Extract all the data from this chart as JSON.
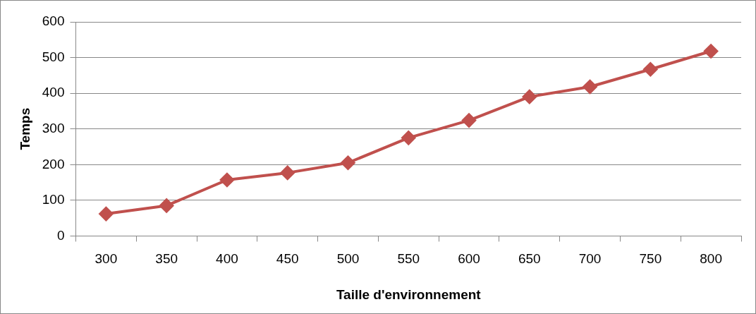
{
  "chart_data": {
    "type": "line",
    "xlabel": "Taille d'environnement",
    "ylabel": "Temps",
    "categories": [
      "300",
      "350",
      "400",
      "450",
      "500",
      "550",
      "600",
      "650",
      "700",
      "750",
      "800"
    ],
    "series": [
      {
        "color": "#c0504d",
        "values": [
          62,
          85,
          157,
          177,
          205,
          275,
          324,
          390,
          418,
          467,
          518
        ]
      }
    ],
    "ylim": [
      0,
      600
    ],
    "yticks": [
      0,
      100,
      200,
      300,
      400,
      500,
      600
    ],
    "grid": "y",
    "legend": false,
    "marker": "diamond",
    "line_style": "solid"
  }
}
